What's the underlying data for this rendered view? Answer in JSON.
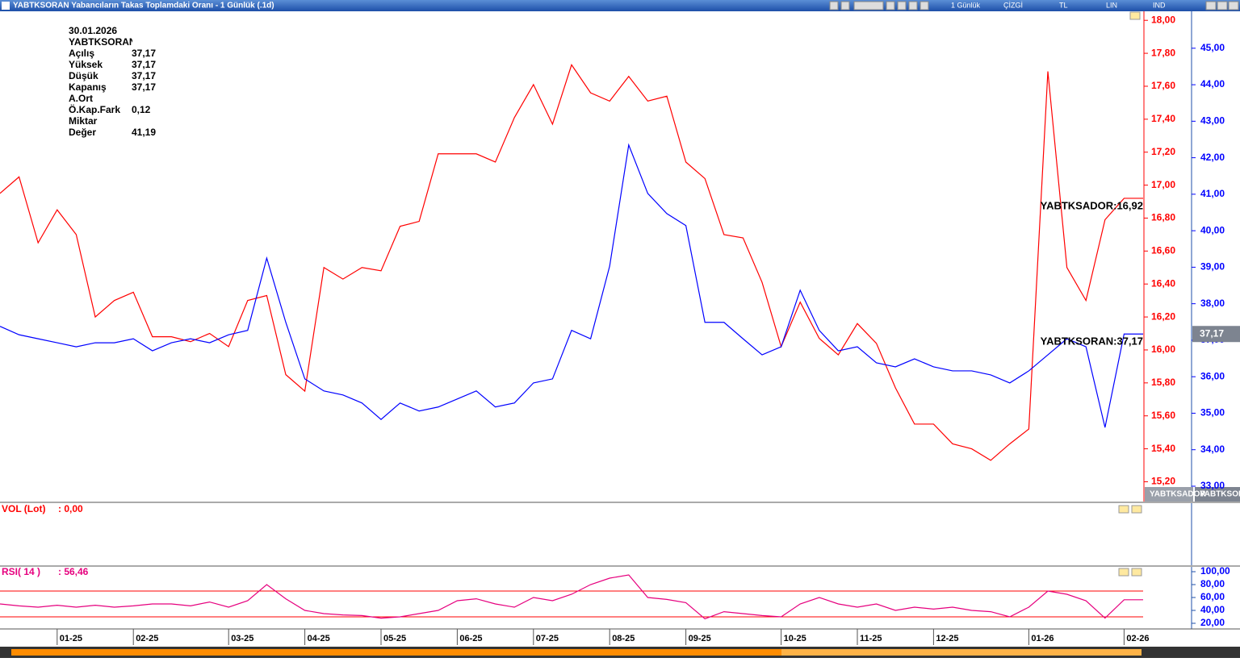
{
  "window_title": "YABTKSORAN Yabancıların Takas Toplamdaki Oranı - 1 Günlük (.1d)",
  "toolbar": [
    "1 Günlük",
    "ÇİZGİ",
    "TL",
    "LIN",
    "IND"
  ],
  "info": {
    "date": "30.01.2026",
    "symbol": "YABTKSORAN",
    "rows": [
      {
        "label": "Açılış",
        "value": "37,17"
      },
      {
        "label": "Yüksek",
        "value": "37,17"
      },
      {
        "label": "Düşük",
        "value": "37,17"
      },
      {
        "label": "Kapanış",
        "value": "37,17"
      },
      {
        "label": "A.Ort"
      },
      {
        "label": "Ö.Kap.Fark",
        "value": "0,12"
      },
      {
        "label": "Miktar"
      },
      {
        "label": "Değer",
        "value": "41,19"
      }
    ]
  },
  "volume_panel": {
    "label": "VOL (Lot)",
    "value": ": 0,00"
  },
  "rsi_panel": {
    "label": "RSI( 14 )",
    "value": ": 56,46"
  },
  "tabs": [
    "YABTKSADOR",
    "YABTKSORAN"
  ],
  "chart_data": [
    {
      "type": "line",
      "categories": [
        null,
        null,
        null,
        "01-25",
        null,
        null,
        null,
        "02-25",
        null,
        null,
        null,
        null,
        "03-25",
        null,
        null,
        null,
        "04-25",
        null,
        null,
        null,
        "05-25",
        null,
        null,
        null,
        "06-25",
        null,
        null,
        null,
        "07-25",
        null,
        null,
        null,
        "08-25",
        null,
        null,
        null,
        "09-25",
        null,
        null,
        null,
        null,
        "10-25",
        null,
        null,
        null,
        "11-25",
        null,
        null,
        null,
        "12-25",
        null,
        null,
        null,
        null,
        "01-26",
        null,
        null,
        null,
        null,
        "02-26",
        null
      ],
      "series": [
        {
          "name": "YABTKSADOR",
          "color": "#ff0000",
          "axis": "y",
          "values": [
            16.95,
            17.05,
            16.65,
            16.85,
            16.7,
            16.2,
            16.3,
            16.35,
            16.08,
            16.08,
            16.05,
            16.1,
            16.02,
            16.3,
            16.33,
            15.85,
            15.75,
            16.5,
            16.43,
            16.5,
            16.48,
            16.75,
            16.78,
            17.19,
            17.19,
            17.19,
            17.14,
            17.41,
            17.61,
            17.37,
            17.73,
            17.56,
            17.51,
            17.66,
            17.51,
            17.54,
            17.14,
            17.04,
            16.7,
            16.68,
            16.41,
            16.02,
            16.29,
            16.07,
            15.97,
            16.16,
            16.04,
            15.77,
            15.55,
            15.55,
            15.43,
            15.4,
            15.33,
            15.43,
            15.52,
            17.69,
            16.5,
            16.3,
            16.79,
            16.92,
            16.92
          ]
        },
        {
          "name": "YABTKSORAN",
          "color": "#0000ff",
          "axis": "y2",
          "values": [
            37.38,
            37.15,
            37.04,
            36.93,
            36.82,
            36.93,
            36.93,
            37.04,
            36.71,
            36.93,
            37.04,
            36.93,
            37.15,
            37.27,
            39.25,
            37.49,
            35.94,
            35.61,
            35.5,
            35.28,
            34.83,
            35.28,
            35.06,
            35.17,
            35.39,
            35.61,
            35.17,
            35.28,
            35.83,
            35.94,
            37.27,
            37.04,
            39.03,
            42.35,
            41.02,
            40.47,
            40.14,
            37.49,
            37.49,
            37.04,
            36.6,
            36.82,
            38.37,
            37.27,
            36.71,
            36.82,
            36.38,
            36.27,
            36.49,
            36.27,
            36.16,
            36.16,
            36.05,
            35.83,
            36.16,
            36.6,
            37.04,
            36.82,
            34.61,
            37.17,
            37.17
          ]
        }
      ],
      "ylim": [
        15.08,
        18.05
      ],
      "yticks": [
        {
          "value": 15.2,
          "label": "15,20"
        },
        {
          "value": 15.4,
          "label": "15,40"
        },
        {
          "value": 15.6,
          "label": "15,60"
        },
        {
          "value": 15.8,
          "label": "15,80"
        },
        {
          "value": 16,
          "label": "16,00"
        },
        {
          "value": 16.2,
          "label": "16,20"
        },
        {
          "value": 16.4,
          "label": "16,40"
        },
        {
          "value": 16.6,
          "label": "16,60"
        },
        {
          "value": 16.8,
          "label": "16,80"
        },
        {
          "value": 17,
          "label": "17,00"
        },
        {
          "value": 17.2,
          "label": "17,20"
        },
        {
          "value": 17.4,
          "label": "17,40"
        },
        {
          "value": 17.6,
          "label": "17,60"
        },
        {
          "value": 17.8,
          "label": "17,80"
        },
        {
          "value": 18,
          "label": "18,00"
        }
      ],
      "y2lim": [
        32.58,
        45.99
      ],
      "y2ticks": [
        {
          "value": 33,
          "label": "33,00"
        },
        {
          "value": 34,
          "label": "34,00"
        },
        {
          "value": 35,
          "label": "35,00"
        },
        {
          "value": 36,
          "label": "36,00"
        },
        {
          "value": 37,
          "label": "37,00"
        },
        {
          "value": 38,
          "label": "38,00"
        },
        {
          "value": 39,
          "label": "39,00"
        },
        {
          "value": 40,
          "label": "40,00"
        },
        {
          "value": 41,
          "label": "41,00"
        },
        {
          "value": 42,
          "label": "42,00"
        },
        {
          "value": 43,
          "label": "43,00"
        },
        {
          "value": 44,
          "label": "44,00"
        },
        {
          "value": 45,
          "label": "45,00"
        }
      ],
      "annotations": [
        "YABTKSADOR:16,92",
        "YABTKSORAN:37,17"
      ],
      "last_value_tag": {
        "value": 37.17,
        "label": "37,17"
      }
    },
    {
      "type": "line",
      "series": [
        {
          "name": "RSI",
          "color": "#e6007e",
          "values": [
            50,
            47,
            45,
            48,
            45,
            48,
            45,
            47,
            50,
            50,
            47,
            53,
            45,
            55,
            80,
            58,
            40,
            35,
            33,
            32,
            28,
            30,
            35,
            40,
            55,
            58,
            50,
            45,
            60,
            55,
            65,
            80,
            90,
            95,
            60,
            57,
            52,
            27,
            38,
            35,
            32,
            30,
            50,
            60,
            50,
            45,
            50,
            40,
            45,
            42,
            45,
            40,
            38,
            30,
            45,
            70,
            65,
            55,
            28,
            56.46,
            56.46
          ]
        }
      ],
      "ylim": [
        11.25,
        107.5
      ],
      "yticks": [
        {
          "value": 20,
          "label": "20,00"
        },
        {
          "value": 40,
          "label": "40,00"
        },
        {
          "value": 60,
          "label": "60,00"
        },
        {
          "value": 80,
          "label": "80,00"
        },
        {
          "value": 100,
          "label": "100,00"
        }
      ],
      "reference_lines": [
        70,
        30
      ],
      "reference_color": "#ff0000"
    }
  ]
}
